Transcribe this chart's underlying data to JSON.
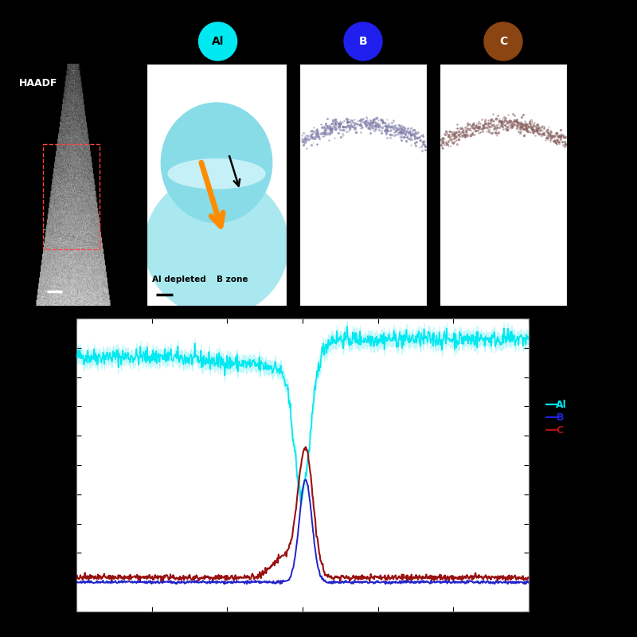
{
  "background_color": "#000000",
  "haadf_label": "HAADF",
  "al_label": "Al",
  "b_label": "B",
  "c_label": "C",
  "al_depleted_text": "Al depleted",
  "b_zone_text": "B zone",
  "al_circle_color": "#00e8f0",
  "b_circle_color": "#2020ee",
  "c_circle_color": "#8b4513",
  "legend_al_color": "#00e8f0",
  "legend_b_color": "#2222dd",
  "legend_c_color": "#aa1111",
  "al_arrow_color": "#ff8c00",
  "xlim": [
    0,
    30
  ],
  "ylim": [
    -0.5,
    4.5
  ],
  "xticks": [
    0,
    5,
    10,
    15,
    20,
    25,
    30
  ],
  "yticks": [
    -0.5,
    0.0,
    0.5,
    1.0,
    1.5,
    2.0,
    2.5,
    3.0,
    3.5,
    4.0,
    4.5
  ],
  "al_line_color": "#00e8f0",
  "b_line_color": "#2222cc",
  "c_line_color": "#991111"
}
